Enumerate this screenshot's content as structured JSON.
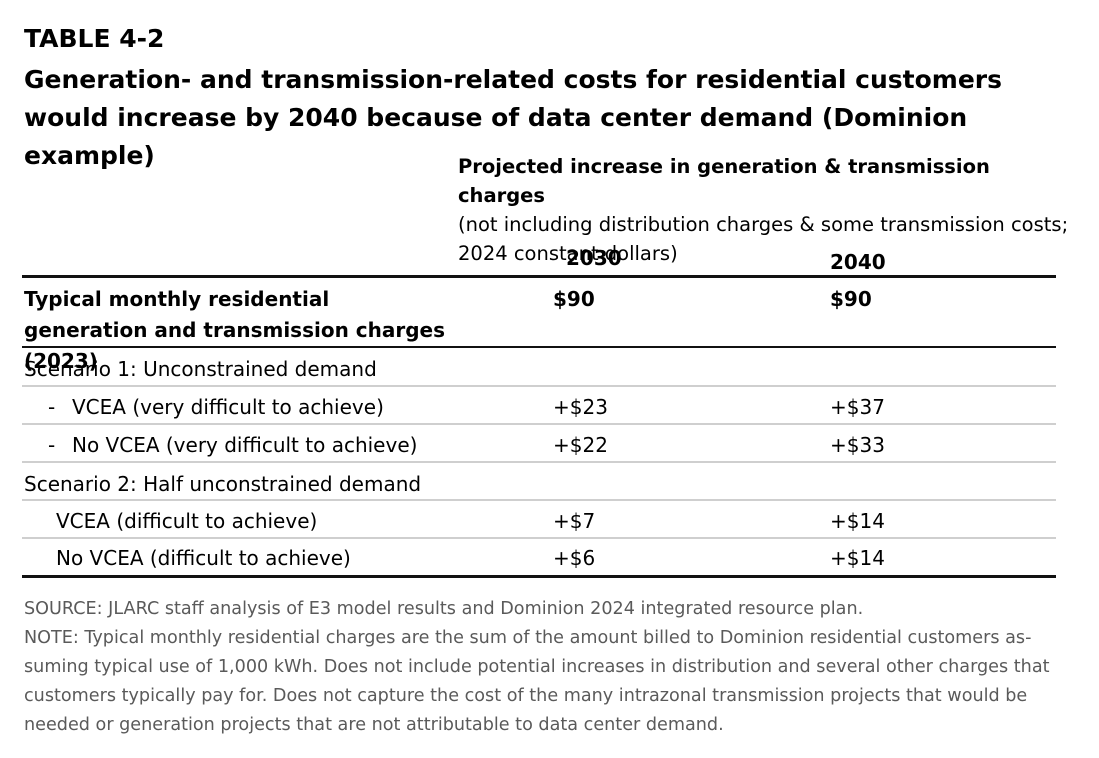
{
  "table_label": "TABLE 4-2",
  "title": "Generation- and transmission-related costs for residential customers would increase by 2040 because of data center demand (Dominion example)",
  "column_header": {
    "bold": "Projected increase in generation & transmission charges",
    "detail": "(not including distribution charges & some transmission costs; 2024 constant dollars)"
  },
  "years": [
    "2030",
    "2040"
  ],
  "typical_row": {
    "label": "Typical monthly residential generation and transmission charges (2023)",
    "v2030": "$90",
    "v2040": "$90"
  },
  "scenario1": {
    "label": "Scenario 1: Unconstrained demand",
    "rows": [
      {
        "dash": "-",
        "label": "VCEA (very difficult to achieve)",
        "v2030": "+$23",
        "v2040": "+$37"
      },
      {
        "dash": "-",
        "label": "No VCEA (very difficult to achieve)",
        "v2030": "+$22",
        "v2040": "+$33"
      }
    ]
  },
  "scenario2": {
    "label": "Scenario 2: Half unconstrained demand",
    "rows": [
      {
        "label": "VCEA (difficult to achieve)",
        "v2030": "+$7",
        "v2040": "+$14"
      },
      {
        "label": "No VCEA (difficult to achieve)",
        "v2030": "+$6",
        "v2040": "+$14"
      }
    ]
  },
  "source": "SOURCE: JLARC staff analysis of E3 model results and Dominion 2024 integrated resource plan.",
  "note": "NOTE: Typical monthly residential charges are the sum of the amount billed to Dominion residential customers as­suming typical use of 1,000 kWh. Does not include potential increases in distribution and several other charges that customers typically pay for. Does not capture the cost of the many intrazonal transmission projects that would be needed or generation projects that are not attributable to data center demand."
}
